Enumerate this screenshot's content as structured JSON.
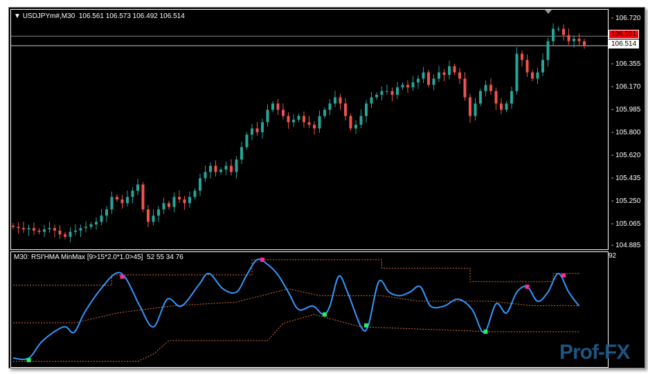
{
  "header": {
    "symbol": "USDJPYm#,M30",
    "ohlc": "106.561 106.573 106.492 106.514"
  },
  "indicator": {
    "title": "M30: RSI'HMA MinMax [9>15*2.0*1.0>45]  52 55 34 76",
    "axis_top": "92",
    "axis_bottom": "5"
  },
  "price_axis": {
    "ticks": [
      "106.720",
      "106.355",
      "106.170",
      "105.985",
      "105.800",
      "105.620",
      "105.435",
      "105.250",
      "105.065",
      "104.885"
    ],
    "ask_label": "106.591",
    "bid_label": "106.514"
  },
  "colors": {
    "bull": "#26a69a",
    "bear": "#ef5350",
    "rsi": "#3399ff",
    "band": "#e0702a",
    "peak": "#ff2a9d",
    "trough": "#22ee66",
    "ask": "#ff0000"
  },
  "watermark": "Prof-FX",
  "closes": [
    105.06,
    105.05,
    105.04,
    105.05,
    105.03,
    105.02,
    105.04,
    105.05,
    105.03,
    105.0,
    104.98,
    105.02,
    105.03,
    105.05,
    105.06,
    105.08,
    105.1,
    105.15,
    105.2,
    105.3,
    105.28,
    105.25,
    105.3,
    105.35,
    105.4,
    105.2,
    105.1,
    105.15,
    105.2,
    105.25,
    105.22,
    105.3,
    105.28,
    105.25,
    105.3,
    105.35,
    105.45,
    105.5,
    105.55,
    105.5,
    105.52,
    105.55,
    105.5,
    105.6,
    105.7,
    105.8,
    105.85,
    105.82,
    105.9,
    106.0,
    106.05,
    106.0,
    105.95,
    105.9,
    105.92,
    105.95,
    105.9,
    105.88,
    105.85,
    105.95,
    106.0,
    106.05,
    106.1,
    106.05,
    105.95,
    105.85,
    105.88,
    105.95,
    106.05,
    106.1,
    106.12,
    106.15,
    106.15,
    106.12,
    106.18,
    106.2,
    106.18,
    106.22,
    106.25,
    106.3,
    106.2,
    106.25,
    106.3,
    106.28,
    106.35,
    106.3,
    106.25,
    106.1,
    105.95,
    106.05,
    106.15,
    106.2,
    106.15,
    106.05,
    106.0,
    106.05,
    106.15,
    106.45,
    106.4,
    106.3,
    106.25,
    106.3,
    106.4,
    106.55,
    106.65,
    106.65,
    106.6,
    106.55,
    106.57,
    106.55,
    106.51
  ],
  "rsi": [
    [
      0,
      10.7
    ],
    [
      3,
      10.7
    ],
    [
      5.7,
      25.1
    ],
    [
      9.7,
      36.5
    ],
    [
      11.7,
      31.9
    ],
    [
      13.7,
      48
    ],
    [
      16.4,
      65.2
    ],
    [
      19.7,
      80.6
    ],
    [
      21.7,
      76.6
    ],
    [
      24.4,
      53.7
    ],
    [
      27,
      36.5
    ],
    [
      29.7,
      59.4
    ],
    [
      32.4,
      53.7
    ],
    [
      35.7,
      70.9
    ],
    [
      37.7,
      80.6
    ],
    [
      40.4,
      68
    ],
    [
      43,
      65.2
    ],
    [
      45,
      79.5
    ],
    [
      47,
      92.1
    ],
    [
      49,
      88.1
    ],
    [
      51,
      79.5
    ],
    [
      53,
      65.2
    ],
    [
      55,
      50.8
    ],
    [
      57.7,
      53.7
    ],
    [
      59.7,
      46.8
    ],
    [
      61,
      53.7
    ],
    [
      62.7,
      78.3
    ],
    [
      64.4,
      65.2
    ],
    [
      67,
      36.5
    ],
    [
      68.4,
      37.7
    ],
    [
      70.4,
      73.8
    ],
    [
      72.4,
      65.2
    ],
    [
      74.4,
      62.3
    ],
    [
      76.4,
      65.2
    ],
    [
      78.4,
      69.7
    ],
    [
      80.4,
      53.7
    ],
    [
      83,
      53.7
    ],
    [
      85.7,
      59.4
    ],
    [
      88.4,
      50.8
    ],
    [
      90.7,
      31.9
    ],
    [
      93,
      55.5
    ],
    [
      95,
      48
    ],
    [
      97,
      65.2
    ],
    [
      99,
      69.7
    ],
    [
      101,
      57.7
    ],
    [
      103,
      65.2
    ],
    [
      105,
      80.6
    ],
    [
      107,
      65.2
    ],
    [
      109,
      53.7
    ]
  ],
  "bands": {
    "upper": [
      [
        0,
        70.9
      ],
      [
        19,
        70.9
      ],
      [
        19,
        79.5
      ],
      [
        46,
        79.5
      ],
      [
        46,
        92
      ],
      [
        71,
        92
      ],
      [
        71,
        85
      ],
      [
        88,
        85
      ],
      [
        88,
        73.8
      ],
      [
        104,
        73.8
      ],
      [
        104,
        80.6
      ],
      [
        109,
        80.6
      ]
    ],
    "mid": [
      [
        0,
        39.9
      ],
      [
        12,
        39.9
      ],
      [
        20,
        48
      ],
      [
        31,
        54
      ],
      [
        43,
        57
      ],
      [
        53,
        68
      ],
      [
        59,
        62.3
      ],
      [
        71,
        62.3
      ],
      [
        78,
        57.7
      ],
      [
        92,
        57.7
      ],
      [
        100,
        54
      ],
      [
        109,
        54
      ]
    ],
    "lower": [
      [
        0,
        8
      ],
      [
        24,
        8
      ],
      [
        27,
        14
      ],
      [
        30,
        25.1
      ],
      [
        49,
        25.1
      ],
      [
        52,
        39.4
      ],
      [
        58,
        46.8
      ],
      [
        67,
        36.5
      ],
      [
        92,
        32.5
      ],
      [
        109,
        32.5
      ]
    ]
  },
  "markers": {
    "peaks": [
      [
        21,
        78
      ],
      [
        48,
        92
      ],
      [
        99,
        69.7
      ],
      [
        106,
        79
      ]
    ],
    "troughs": [
      [
        3,
        9
      ],
      [
        60,
        46.8
      ],
      [
        68,
        37.7
      ],
      [
        91,
        32.5
      ]
    ]
  }
}
